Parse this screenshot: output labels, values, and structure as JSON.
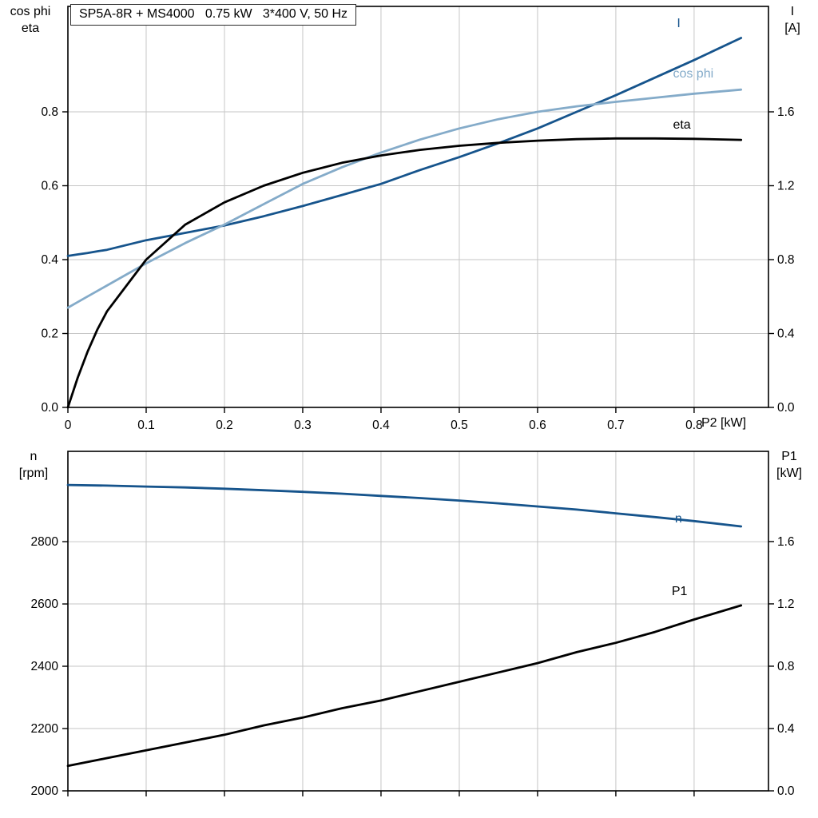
{
  "title": "SP5A-8R + MS4000   0.75 kW   3*400 V, 50 Hz",
  "colors": {
    "dark_blue": "#16548c",
    "light_blue": "#84abc9",
    "black": "#000000",
    "grid": "#c6c6c6",
    "frame": "#000000"
  },
  "axis_labels": {
    "top_left": [
      "cos phi",
      "eta"
    ],
    "top_right": [
      "I",
      "[A]"
    ],
    "top_x": "P2 [kW]",
    "bottom_left": [
      "n",
      "[rpm]"
    ],
    "bottom_right": [
      "P1",
      "[kW]"
    ]
  },
  "chart_data": [
    {
      "type": "line",
      "title": "SP5A-8R + MS4000   0.75 kW   3*400 V, 50 Hz",
      "x_label": "P2 [kW]",
      "x_range": [
        0,
        0.895
      ],
      "x": [
        0,
        0.0125,
        0.025,
        0.0375,
        0.05,
        0.1,
        0.15,
        0.2,
        0.25,
        0.3,
        0.35,
        0.4,
        0.45,
        0.5,
        0.55,
        0.6,
        0.65,
        0.7,
        0.75,
        0.8,
        0.86
      ],
      "x_ticks": {
        "values": [
          0,
          0.1,
          0.2,
          0.3,
          0.4,
          0.5,
          0.6,
          0.7,
          0.8
        ],
        "labels": [
          "0",
          "0.1",
          "0.2",
          "0.3",
          "0.4",
          "0.5",
          "0.6",
          "0.7",
          "0.8"
        ]
      },
      "left_axis": {
        "label": "cos phi / eta",
        "range": [
          0,
          1.0854
        ],
        "tick_values": [
          0,
          0.2,
          0.4,
          0.6,
          0.8
        ],
        "tick_labels": [
          "0.0",
          "0.2",
          "0.4",
          "0.6",
          "0.8"
        ]
      },
      "right_axis": {
        "label": "I [A]",
        "range": [
          0,
          2.1708
        ],
        "tick_values": [
          0,
          0.4,
          0.8,
          1.2,
          1.6
        ],
        "tick_labels": [
          "0.0",
          "0.4",
          "0.8",
          "1.2",
          "1.6"
        ]
      },
      "series": [
        {
          "name": "I",
          "axis": "right",
          "color": "#16548c",
          "values": [
            0.82,
            0.828,
            0.836,
            0.845,
            0.853,
            0.905,
            0.945,
            0.985,
            1.035,
            1.09,
            1.15,
            1.21,
            1.285,
            1.355,
            1.43,
            1.51,
            1.6,
            1.69,
            1.785,
            1.88,
            2.0
          ],
          "label": {
            "text": "I",
            "x": 0.778,
            "y": 2.084
          }
        },
        {
          "name": "cos phi",
          "axis": "left",
          "color": "#84abc9",
          "values": [
            0.27,
            0.285,
            0.3,
            0.315,
            0.33,
            0.39,
            0.445,
            0.495,
            0.55,
            0.605,
            0.65,
            0.69,
            0.725,
            0.755,
            0.78,
            0.8,
            0.815,
            0.827,
            0.838,
            0.849,
            0.86
          ],
          "label": {
            "text": "cos phi",
            "x": 0.773,
            "y": 0.906
          }
        },
        {
          "name": "eta",
          "axis": "left",
          "color": "#000000",
          "values": [
            0,
            0.08,
            0.15,
            0.21,
            0.26,
            0.4,
            0.495,
            0.555,
            0.6,
            0.635,
            0.662,
            0.682,
            0.697,
            0.708,
            0.716,
            0.722,
            0.726,
            0.728,
            0.728,
            0.727,
            0.724
          ],
          "label": {
            "text": "eta",
            "x": 0.773,
            "y": 0.768
          }
        }
      ]
    },
    {
      "type": "line",
      "title": "",
      "x_label": "",
      "x_range": [
        0,
        0.895
      ],
      "x": [
        0,
        0.05,
        0.1,
        0.15,
        0.2,
        0.25,
        0.3,
        0.35,
        0.4,
        0.45,
        0.5,
        0.55,
        0.6,
        0.65,
        0.7,
        0.75,
        0.8,
        0.86
      ],
      "x_ticks": {
        "values": [
          0,
          0.1,
          0.2,
          0.3,
          0.4,
          0.5,
          0.6,
          0.7,
          0.8
        ],
        "labels": []
      },
      "left_axis": {
        "label": "n [rpm]",
        "range": [
          2000,
          3090
        ],
        "tick_values": [
          2000,
          2200,
          2400,
          2600,
          2800
        ],
        "tick_labels": [
          "2000",
          "2200",
          "2400",
          "2600",
          "2800"
        ]
      },
      "right_axis": {
        "label": "P1 [kW]",
        "range": [
          0,
          2.179
        ],
        "tick_values": [
          0,
          0.4,
          0.8,
          1.2,
          1.6
        ],
        "tick_labels": [
          "0.0",
          "0.4",
          "0.8",
          "1.2",
          "1.6"
        ]
      },
      "series": [
        {
          "name": "n",
          "axis": "left",
          "color": "#16548c",
          "values": [
            2982,
            2980,
            2977,
            2974,
            2970,
            2965,
            2960,
            2954,
            2947,
            2940,
            2932,
            2923,
            2913,
            2903,
            2891,
            2879,
            2866,
            2849
          ],
          "label": {
            "text": "n",
            "x": 0.7755,
            "y": 2877
          }
        },
        {
          "name": "P1",
          "axis": "right",
          "color": "#000000",
          "values": [
            0.16,
            0.21,
            0.26,
            0.31,
            0.36,
            0.42,
            0.47,
            0.53,
            0.58,
            0.64,
            0.7,
            0.76,
            0.82,
            0.89,
            0.95,
            1.02,
            1.1,
            1.19
          ],
          "label": {
            "text": "P1",
            "x": 0.7714,
            "y": 1.287
          }
        }
      ]
    }
  ]
}
